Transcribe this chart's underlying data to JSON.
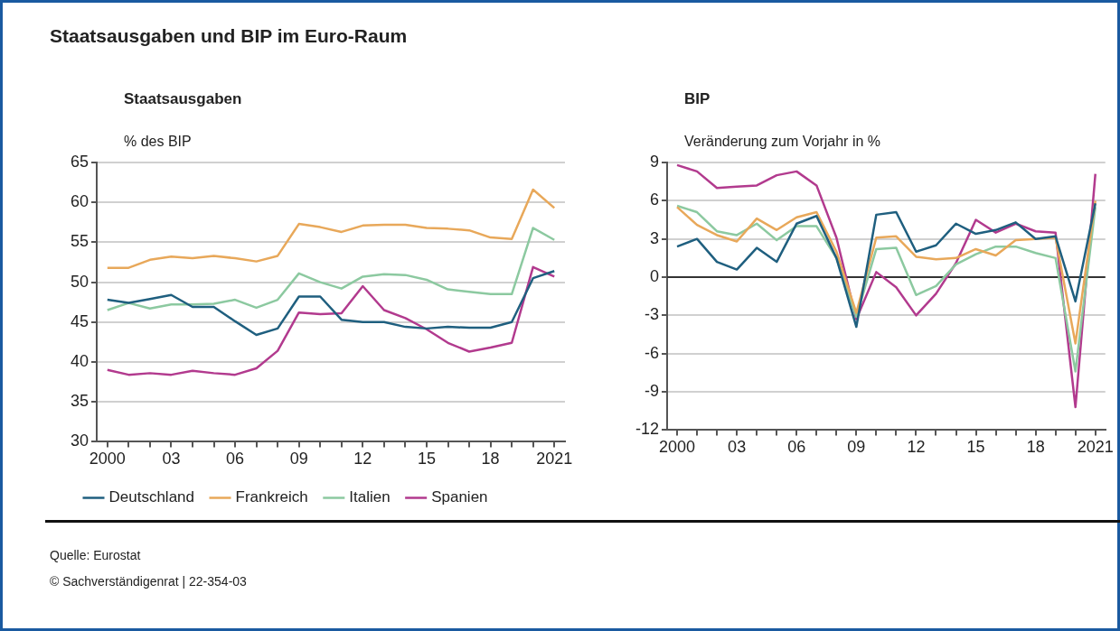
{
  "chart_data": [
    {
      "type": "line",
      "title": "Staatsausgaben und BIP im Euro-Raum",
      "subtitle": "Staatsausgaben",
      "ylabel": "% des BIP",
      "categories": [
        "2000",
        null,
        null,
        "03",
        null,
        null,
        "06",
        null,
        null,
        "09",
        null,
        null,
        "12",
        null,
        null,
        "15",
        null,
        null,
        "18",
        null,
        null,
        "2021"
      ],
      "series": [
        {
          "name": "Deutschland",
          "color": "#1f5f7f",
          "values": [
            47.8,
            47.4,
            47.9,
            48.4,
            46.9,
            46.9,
            45.1,
            43.4,
            44.2,
            48.2,
            48.2,
            45.3,
            45.0,
            45.0,
            44.4,
            44.2,
            44.4,
            44.3,
            44.3,
            45.0,
            50.5,
            51.4
          ]
        },
        {
          "name": "Frankreich",
          "color": "#e8a85a",
          "values": [
            51.8,
            51.8,
            52.8,
            53.2,
            53.0,
            53.3,
            53.0,
            52.6,
            53.3,
            57.3,
            56.9,
            56.3,
            57.1,
            57.2,
            57.2,
            56.8,
            56.7,
            56.5,
            55.6,
            55.4,
            61.6,
            59.3
          ]
        },
        {
          "name": "Italien",
          "color": "#8cc9a0",
          "values": [
            46.5,
            47.4,
            46.7,
            47.2,
            47.2,
            47.3,
            47.8,
            46.8,
            47.8,
            51.1,
            50.0,
            49.2,
            50.7,
            51.0,
            50.9,
            50.3,
            49.1,
            48.8,
            48.5,
            48.5,
            56.8,
            55.3
          ]
        },
        {
          "name": "Spanien",
          "color": "#b23a8e",
          "values": [
            39.0,
            38.4,
            38.6,
            38.4,
            38.9,
            38.6,
            38.4,
            39.2,
            41.4,
            46.2,
            46.0,
            46.1,
            49.5,
            46.5,
            45.5,
            44.1,
            42.4,
            41.3,
            41.8,
            42.4,
            51.9,
            50.7
          ]
        }
      ],
      "ylim": [
        30,
        65
      ],
      "yticks": [
        30,
        35,
        40,
        45,
        50,
        55,
        60,
        65
      ],
      "grid": "y",
      "legend": "bottom",
      "marker": "none",
      "annotations": [
        "Quelle: Eurostat",
        "© Sachverständigenrat | 22-354-03"
      ]
    },
    {
      "type": "line",
      "title": "BIP",
      "ylabel": "Veränderung zum Vorjahr in %",
      "categories": [
        "2000",
        null,
        null,
        "03",
        null,
        null,
        "06",
        null,
        null,
        "09",
        null,
        null,
        "12",
        null,
        null,
        "15",
        null,
        null,
        "18",
        null,
        null,
        "2021"
      ],
      "series": [
        {
          "color": "#1f5f7f",
          "values": [
            2.4,
            3.0,
            1.2,
            0.6,
            2.3,
            1.2,
            4.2,
            4.8,
            1.5,
            -3.9,
            4.9,
            5.1,
            2.0,
            2.5,
            4.2,
            3.4,
            3.7,
            4.3,
            3.0,
            3.2,
            -1.9,
            5.8
          ]
        },
        {
          "color": "#e8a85a",
          "values": [
            5.5,
            4.1,
            3.3,
            2.8,
            4.6,
            3.7,
            4.7,
            5.1,
            2.0,
            -2.8,
            3.1,
            3.2,
            1.6,
            1.4,
            1.5,
            2.2,
            1.7,
            2.9,
            3.0,
            3.1,
            -5.2,
            6.0
          ]
        },
        {
          "color": "#8cc9a0",
          "values": [
            5.6,
            5.1,
            3.6,
            3.3,
            4.2,
            2.9,
            4.0,
            4.0,
            1.5,
            -3.1,
            2.2,
            2.3,
            -1.4,
            -0.7,
            1.0,
            1.8,
            2.4,
            2.4,
            1.9,
            1.5,
            -7.4,
            5.5
          ]
        },
        {
          "color": "#b23a8e",
          "values": [
            8.8,
            8.3,
            7.0,
            7.1,
            7.2,
            8.0,
            8.3,
            7.2,
            3.1,
            -3.3,
            0.4,
            -0.8,
            -3.0,
            -1.3,
            1.1,
            4.5,
            3.5,
            4.2,
            3.6,
            3.5,
            -10.2,
            8.1
          ]
        }
      ],
      "ylim": [
        -12,
        9
      ],
      "yticks": [
        -12,
        -9,
        -6,
        -3,
        0,
        3,
        6,
        9
      ],
      "grid": "y",
      "legend": false,
      "marker": "none",
      "ref_lines": [
        {
          "axis": "y",
          "value": 0,
          "color": "#333333"
        }
      ]
    }
  ]
}
